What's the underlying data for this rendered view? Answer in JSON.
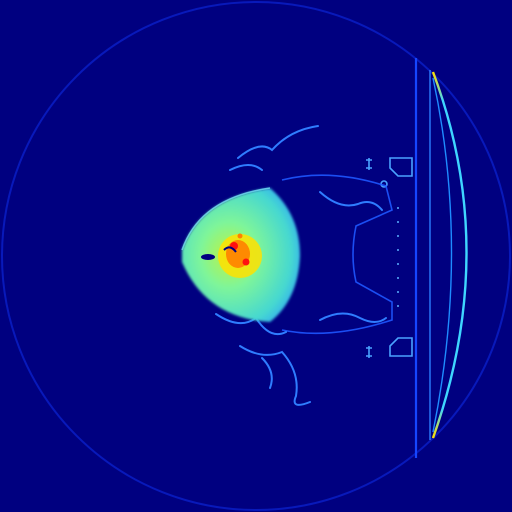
{
  "image": {
    "kind": "false-color simulation field",
    "colormap": "jet",
    "background_color": "#000080",
    "palette": {
      "dark_blue": "#000080",
      "blue": "#0000ff",
      "bright_blue": "#1a6bff",
      "cyan": "#3fd6ff",
      "green_cyan": "#43f2b9",
      "yellow_green": "#bff23f",
      "yellow": "#ffe000",
      "orange": "#ff8000",
      "red": "#ff1010"
    }
  }
}
